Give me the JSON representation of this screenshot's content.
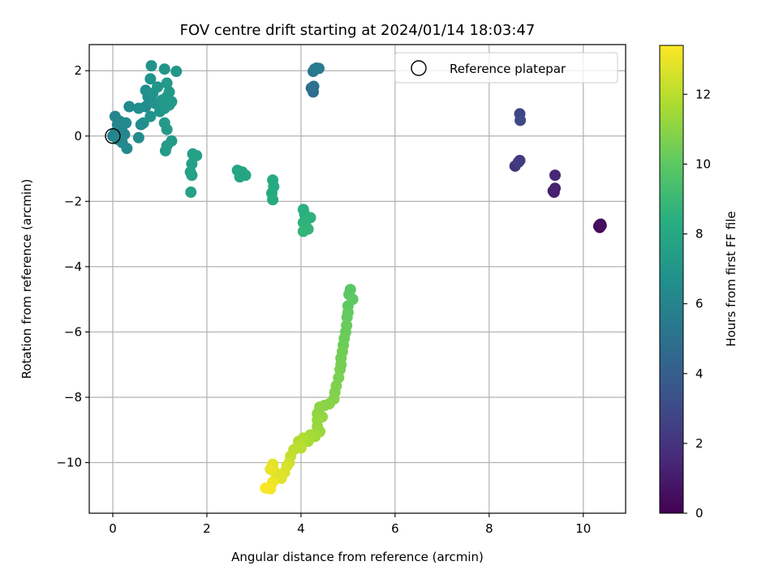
{
  "chart_data": {
    "type": "scatter",
    "title": "FOV centre drift starting at 2024/01/14 18:03:47",
    "xlabel": "Angular distance from reference (arcmin)",
    "ylabel": "Rotation from reference (arcmin)",
    "xlim": [
      -0.5,
      10.9
    ],
    "ylim": [
      -11.55,
      2.8
    ],
    "xticks": [
      0,
      2,
      4,
      6,
      8,
      10
    ],
    "yticks": [
      2,
      0,
      -2,
      -4,
      -6,
      -8,
      -10
    ],
    "grid": true,
    "legend": {
      "position": "top-right",
      "entries": [
        "Reference platepar"
      ]
    },
    "reference_point": {
      "x": 0,
      "y": 0
    },
    "colorbar": {
      "label": "Hours from first FF file",
      "range": [
        0,
        13.4
      ],
      "ticks": [
        0,
        2,
        4,
        6,
        8,
        10,
        12
      ],
      "colormap": "viridis"
    },
    "points": [
      [
        10.35,
        -2.72,
        0.1
      ],
      [
        10.35,
        -2.8,
        0.2
      ],
      [
        10.38,
        -2.74,
        0.3
      ],
      [
        10.33,
        -2.76,
        0.4
      ],
      [
        10.37,
        -2.7,
        0.5
      ],
      [
        9.38,
        -1.72,
        1.0
      ],
      [
        9.4,
        -1.6,
        1.2
      ],
      [
        9.36,
        -1.68,
        1.3
      ],
      [
        9.4,
        -1.2,
        1.5
      ],
      [
        8.55,
        -0.92,
        2.0
      ],
      [
        8.65,
        -0.75,
        2.2
      ],
      [
        8.62,
        -0.8,
        2.4
      ],
      [
        8.65,
        0.68,
        2.8
      ],
      [
        8.66,
        0.48,
        3.0
      ],
      [
        4.26,
        1.35,
        4.8
      ],
      [
        4.22,
        1.47,
        4.9
      ],
      [
        4.27,
        1.52,
        5.0
      ],
      [
        4.26,
        1.98,
        5.3
      ],
      [
        4.29,
        2.05,
        5.4
      ],
      [
        4.33,
        2.08,
        5.5
      ],
      [
        4.38,
        2.07,
        5.6
      ],
      [
        0.0,
        0.0,
        6.0
      ],
      [
        0.05,
        0.1,
        6.0
      ],
      [
        0.1,
        0.35,
        6.1
      ],
      [
        0.05,
        0.6,
        6.1
      ],
      [
        0.15,
        0.45,
        6.2
      ],
      [
        0.2,
        0.3,
        6.2
      ],
      [
        0.25,
        0.05,
        6.2
      ],
      [
        0.3,
        -0.38,
        6.3
      ],
      [
        0.1,
        -0.1,
        6.3
      ],
      [
        0.2,
        -0.2,
        6.3
      ],
      [
        0.28,
        0.4,
        6.4
      ],
      [
        0.35,
        0.9,
        6.4
      ],
      [
        0.55,
        -0.05,
        6.5
      ],
      [
        0.6,
        0.35,
        6.5
      ],
      [
        0.7,
        0.9,
        6.5
      ],
      [
        0.55,
        0.85,
        6.6
      ],
      [
        0.65,
        0.4,
        6.6
      ],
      [
        0.7,
        1.4,
        6.6
      ],
      [
        0.75,
        1.2,
        6.7
      ],
      [
        0.8,
        1.75,
        6.8
      ],
      [
        0.85,
        1.3,
        6.8
      ],
      [
        0.9,
        1.0,
        6.9
      ],
      [
        0.8,
        0.6,
        6.9
      ],
      [
        0.95,
        1.5,
        7.0
      ],
      [
        1.0,
        0.75,
        7.0
      ],
      [
        1.05,
        1.1,
        7.1
      ],
      [
        1.1,
        0.85,
        7.1
      ],
      [
        1.15,
        1.2,
        7.2
      ],
      [
        1.2,
        0.95,
        7.2
      ],
      [
        1.25,
        1.05,
        7.2
      ],
      [
        0.82,
        2.15,
        6.9
      ],
      [
        1.1,
        2.05,
        7.0
      ],
      [
        1.35,
        1.98,
        7.1
      ],
      [
        1.15,
        1.62,
        7.2
      ],
      [
        1.2,
        1.35,
        7.3
      ],
      [
        1.1,
        0.4,
        7.3
      ],
      [
        1.15,
        0.2,
        7.3
      ],
      [
        1.25,
        -0.15,
        7.3
      ],
      [
        1.15,
        -0.3,
        7.4
      ],
      [
        1.12,
        -0.45,
        7.4
      ],
      [
        1.7,
        -0.55,
        7.6
      ],
      [
        1.78,
        -0.6,
        7.6
      ],
      [
        1.68,
        -0.85,
        7.6
      ],
      [
        1.65,
        -1.1,
        7.7
      ],
      [
        1.68,
        -1.2,
        7.7
      ],
      [
        1.66,
        -1.72,
        7.7
      ],
      [
        2.65,
        -1.05,
        7.9
      ],
      [
        2.75,
        -1.1,
        7.9
      ],
      [
        2.82,
        -1.2,
        7.9
      ],
      [
        2.7,
        -1.25,
        7.9
      ],
      [
        3.4,
        -1.35,
        8.2
      ],
      [
        3.42,
        -1.55,
        8.2
      ],
      [
        3.38,
        -1.75,
        8.2
      ],
      [
        3.4,
        -1.95,
        8.2
      ],
      [
        4.05,
        -2.25,
        8.5
      ],
      [
        4.08,
        -2.4,
        8.5
      ],
      [
        4.2,
        -2.5,
        8.6
      ],
      [
        4.05,
        -2.65,
        8.6
      ],
      [
        4.1,
        -2.75,
        8.6
      ],
      [
        4.15,
        -2.85,
        8.8
      ],
      [
        4.05,
        -2.92,
        8.8
      ],
      [
        5.05,
        -4.7,
        10.0
      ],
      [
        5.02,
        -4.85,
        10.0
      ],
      [
        5.1,
        -5.0,
        10.1
      ],
      [
        5.0,
        -5.2,
        10.1
      ],
      [
        5.0,
        -5.4,
        10.2
      ],
      [
        4.98,
        -5.55,
        10.2
      ],
      [
        4.97,
        -5.8,
        10.3
      ],
      [
        4.95,
        -6.0,
        10.3
      ],
      [
        4.92,
        -6.2,
        10.4
      ],
      [
        4.9,
        -6.4,
        10.4
      ],
      [
        4.88,
        -6.6,
        10.5
      ],
      [
        4.85,
        -6.8,
        10.5
      ],
      [
        4.85,
        -7.0,
        10.6
      ],
      [
        4.83,
        -7.15,
        10.6
      ],
      [
        4.8,
        -7.4,
        10.7
      ],
      [
        4.75,
        -7.65,
        10.8
      ],
      [
        4.72,
        -7.85,
        10.8
      ],
      [
        4.7,
        -8.05,
        10.9
      ],
      [
        4.6,
        -8.2,
        11.0
      ],
      [
        4.5,
        -8.25,
        11.0
      ],
      [
        4.4,
        -8.3,
        11.1
      ],
      [
        4.35,
        -8.5,
        11.1
      ],
      [
        4.45,
        -8.6,
        11.2
      ],
      [
        4.35,
        -8.7,
        11.3
      ],
      [
        4.35,
        -8.9,
        11.3
      ],
      [
        4.4,
        -9.05,
        11.4
      ],
      [
        4.3,
        -9.2,
        11.5
      ],
      [
        4.2,
        -9.15,
        11.6
      ],
      [
        4.15,
        -9.35,
        11.7
      ],
      [
        4.05,
        -9.25,
        11.8
      ],
      [
        3.95,
        -9.35,
        11.9
      ],
      [
        4.0,
        -9.55,
        12.0
      ],
      [
        3.85,
        -9.6,
        12.1
      ],
      [
        3.78,
        -9.8,
        12.2
      ],
      [
        3.75,
        -10.0,
        12.4
      ],
      [
        3.7,
        -10.1,
        12.6
      ],
      [
        3.65,
        -10.3,
        12.7
      ],
      [
        3.58,
        -10.48,
        12.8
      ],
      [
        3.45,
        -10.3,
        12.8
      ],
      [
        3.4,
        -10.05,
        12.9
      ],
      [
        3.35,
        -10.2,
        13.0
      ],
      [
        3.4,
        -10.6,
        13.1
      ],
      [
        3.35,
        -10.8,
        13.2
      ],
      [
        3.25,
        -10.78,
        13.3
      ]
    ]
  }
}
